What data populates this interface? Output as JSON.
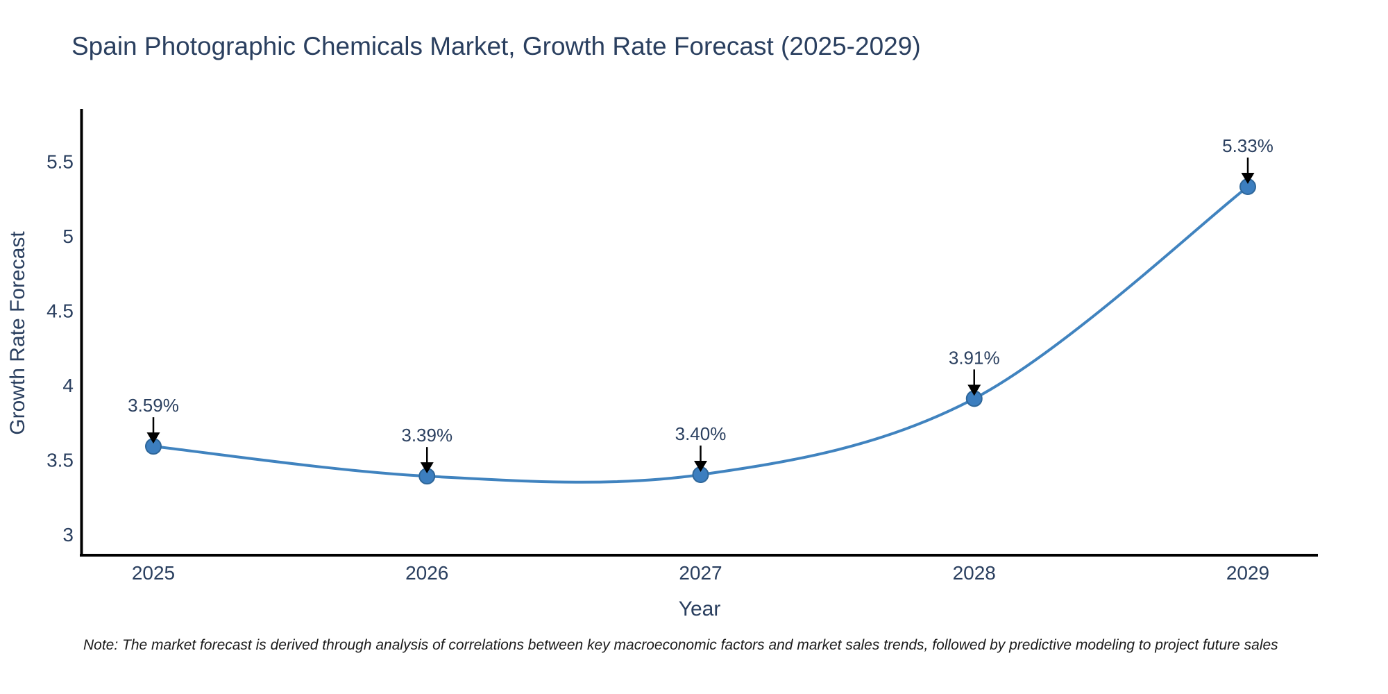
{
  "title": "Spain Photographic Chemicals Market, Growth Rate Forecast (2025-2029)",
  "note": "Note: The market forecast is derived through analysis of correlations between key macroeconomic factors and market sales trends, followed by predictive modeling to project future sales",
  "chart_data": {
    "type": "line",
    "title": "Spain Photographic Chemicals Market, Growth Rate Forecast (2025-2029)",
    "categories": [
      "2025",
      "2026",
      "2027",
      "2028",
      "2029"
    ],
    "values": [
      3.59,
      3.39,
      3.4,
      3.91,
      5.33
    ],
    "point_labels": [
      "3.59%",
      "3.39%",
      "3.40%",
      "3.91%",
      "5.33%"
    ],
    "xlabel": "Year",
    "ylabel": "Growth Rate Forecast",
    "ytick_labels": [
      "3",
      "3.5",
      "4",
      "4.5",
      "5",
      "5.5"
    ],
    "ytick_values": [
      3,
      3.5,
      4,
      4.5,
      5,
      5.5
    ],
    "ylim": [
      2.86,
      5.86
    ],
    "line_shape": "spline",
    "grid": false,
    "legend": "none",
    "annotation_style": "value label with downward arrow to each marker",
    "colors": {
      "line": "#4083bf",
      "marker_fill": "#3c7ebf",
      "marker_edge": "#2e6699",
      "axis": "#000000",
      "tick_text": "#2a3f5f",
      "annotation_text": "#2a3f5f",
      "arrow": "#000000",
      "title_text": "#2a3f5f",
      "background": "#ffffff"
    }
  }
}
